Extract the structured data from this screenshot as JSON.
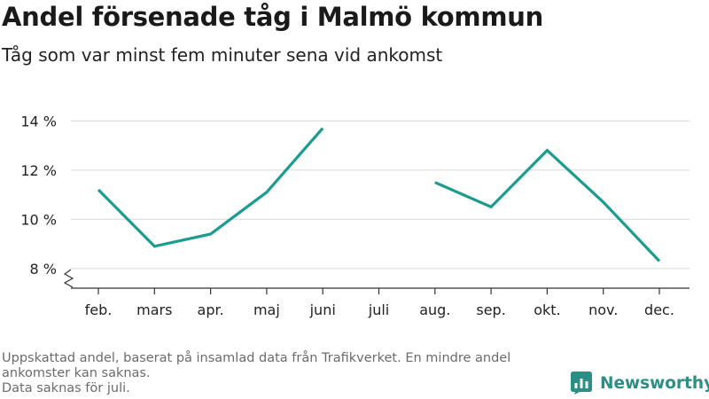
{
  "title": "Andel försenade tåg i Malmö kommun",
  "subtitle": "Tåg som var minst fem minuter sena vid ankomst",
  "footnote": {
    "line1": "Uppskattad andel, baserat på insamlad data från Trafikverket. En mindre andel ankomster kan saknas.",
    "line2": "Data saknas för juli."
  },
  "brand": {
    "name": "Newsworthy",
    "icon": "newsworthy-logo-icon",
    "color": "#2b8f86"
  },
  "colors": {
    "line": "#1a9c8e",
    "grid": "#dddddd",
    "axis": "#333333"
  },
  "chart_data": {
    "type": "line",
    "title": "Andel försenade tåg i Malmö kommun",
    "subtitle": "Tåg som var minst fem minuter sena vid ankomst",
    "xlabel": "",
    "ylabel": "",
    "categories": [
      "feb.",
      "mars",
      "apr.",
      "maj",
      "juni",
      "juli",
      "aug.",
      "sep.",
      "okt.",
      "nov.",
      "dec."
    ],
    "values": [
      11.2,
      8.9,
      9.4,
      11.1,
      13.7,
      null,
      11.5,
      10.5,
      12.8,
      10.7,
      8.3
    ],
    "y_ticks": [
      8,
      10,
      12,
      14
    ],
    "y_tick_labels": [
      "8 %",
      "10 %",
      "12 %",
      "14 %"
    ],
    "ylim": [
      7.2,
      14.3
    ],
    "y_axis_break": true,
    "grid": true,
    "legend": "none"
  }
}
